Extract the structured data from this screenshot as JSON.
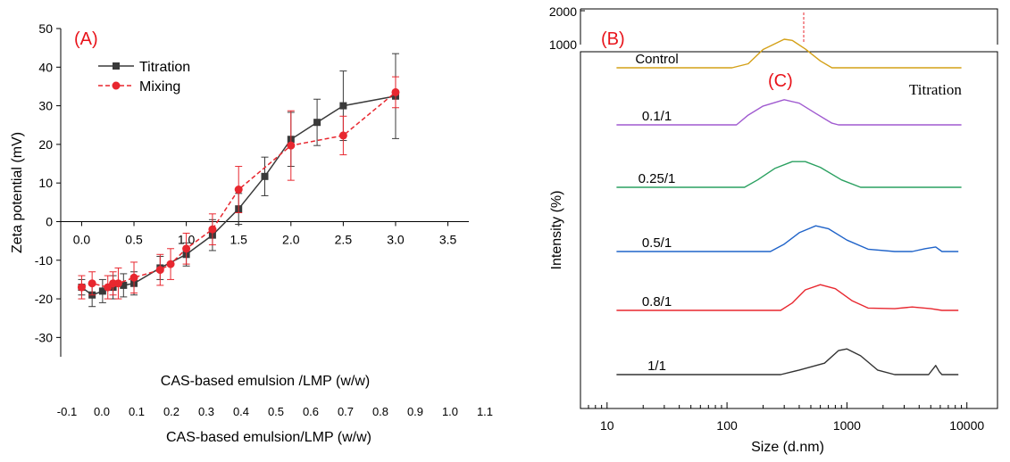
{
  "panels": {
    "A": {
      "label": "(A)",
      "ylabel": "Zeta potential (mV)",
      "xlabel": "CAS-based emulsion /LMP (w/w)",
      "xlabel2": "CAS-based emulsion/LMP (w/w)",
      "label_color": "#e8141b"
    },
    "B": {
      "label": "(B)",
      "top_ticks": [
        "2000",
        "1000"
      ],
      "label_color": "#e8141b"
    },
    "C": {
      "label": "(C)",
      "title": "Titration",
      "ylabel": "Intensity (%)",
      "xlabel": "Size (d.nm)",
      "label_color": "#e8141b"
    }
  },
  "chart_data": [
    {
      "id": "A",
      "type": "line",
      "xlim": [
        -0.2,
        3.7
      ],
      "ylim": [
        -35,
        50
      ],
      "yticks": [
        -30,
        -20,
        -10,
        0,
        10,
        20,
        30,
        40,
        50
      ],
      "xticks": [
        "0.0",
        "0.5",
        "1.0",
        "1.5",
        "2.0",
        "2.5",
        "3.0",
        "3.5"
      ],
      "xticks_values": [
        0,
        0.5,
        1.0,
        1.5,
        2.0,
        2.5,
        3.0,
        3.5
      ],
      "secondary_xticks": [
        "-0.1",
        "0.0",
        "0.1",
        "0.2",
        "0.3",
        "0.4",
        "0.5",
        "0.6",
        "0.7",
        "0.8",
        "0.9",
        "1.0",
        "1.1"
      ],
      "secondary_xlim": [
        -0.1,
        1.1
      ],
      "legend": "top-left",
      "series": [
        {
          "name": "Titration",
          "color": "#3a3a3a",
          "marker": "square",
          "dash": "solid",
          "x": [
            0.0,
            0.1,
            0.2,
            0.3,
            0.4,
            0.5,
            0.75,
            1.0,
            1.25,
            1.5,
            1.75,
            2.0,
            2.25,
            2.5,
            3.0
          ],
          "y": [
            -17.0,
            -19.0,
            -18.0,
            -17.0,
            -16.5,
            -16.0,
            -12.0,
            -8.5,
            -3.5,
            3.3,
            11.7,
            21.3,
            25.7,
            30.0,
            32.5
          ],
          "err": [
            2.0,
            3.0,
            3.0,
            3.0,
            3.0,
            3.0,
            3.0,
            3.0,
            4.0,
            4.0,
            5.0,
            7.0,
            6.0,
            9.0,
            11.0
          ]
        },
        {
          "name": "Mixing",
          "color": "#e8272f",
          "marker": "circle",
          "dash": "dashed",
          "x": [
            0.0,
            0.1,
            0.25,
            0.3,
            0.35,
            0.5,
            0.75,
            0.85,
            1.0,
            1.25,
            1.5,
            2.0,
            2.5,
            3.0
          ],
          "y": [
            -17.0,
            -16.0,
            -17.0,
            -16.0,
            -16.0,
            -14.5,
            -12.5,
            -11.0,
            -7.0,
            -2.0,
            8.3,
            19.7,
            22.3,
            33.5
          ],
          "err": [
            3.0,
            3.0,
            3.0,
            3.0,
            4.0,
            4.0,
            4.0,
            4.0,
            4.0,
            4.0,
            6.0,
            9.0,
            5.0,
            4.0
          ]
        }
      ]
    },
    {
      "id": "C",
      "type": "line",
      "xscale": "log",
      "xlim": [
        6,
        18000
      ],
      "xticks": [
        "10",
        "100",
        "1000",
        "10000"
      ],
      "xticks_values": [
        10,
        100,
        1000,
        10000
      ],
      "series": [
        {
          "name": "Control",
          "color": "#d4a017",
          "baseline": 0.955,
          "points": [
            [
              12,
              0
            ],
            [
              110,
              0
            ],
            [
              150,
              0.07
            ],
            [
              200,
              0.32
            ],
            [
              300,
              0.5
            ],
            [
              350,
              0.48
            ],
            [
              450,
              0.33
            ],
            [
              600,
              0.12
            ],
            [
              750,
              0
            ],
            [
              9000,
              0
            ]
          ]
        },
        {
          "name": "0.1/1",
          "color": "#a05ad0",
          "baseline": 0.795,
          "points": [
            [
              12,
              0
            ],
            [
              120,
              0
            ],
            [
              150,
              0.17
            ],
            [
              200,
              0.33
            ],
            [
              300,
              0.44
            ],
            [
              400,
              0.38
            ],
            [
              550,
              0.2
            ],
            [
              750,
              0.03
            ],
            [
              850,
              0
            ],
            [
              9000,
              0
            ]
          ]
        },
        {
          "name": "0.25/1",
          "color": "#2aa060",
          "baseline": 0.62,
          "points": [
            [
              12,
              0
            ],
            [
              140,
              0
            ],
            [
              180,
              0.13
            ],
            [
              250,
              0.33
            ],
            [
              350,
              0.45
            ],
            [
              450,
              0.45
            ],
            [
              600,
              0.35
            ],
            [
              900,
              0.13
            ],
            [
              1300,
              0
            ],
            [
              9000,
              0
            ]
          ]
        },
        {
          "name": "0.5/1",
          "color": "#1f63c9",
          "baseline": 0.44,
          "points": [
            [
              12,
              0
            ],
            [
              230,
              0
            ],
            [
              300,
              0.13
            ],
            [
              400,
              0.33
            ],
            [
              550,
              0.45
            ],
            [
              700,
              0.4
            ],
            [
              1000,
              0.2
            ],
            [
              1500,
              0.04
            ],
            [
              2500,
              0
            ],
            [
              3500,
              0
            ],
            [
              4500,
              0.05
            ],
            [
              5500,
              0.08
            ],
            [
              6200,
              0
            ],
            [
              8500,
              0
            ]
          ]
        },
        {
          "name": "0.8/1",
          "color": "#e8272f",
          "baseline": 0.275,
          "points": [
            [
              12,
              0
            ],
            [
              280,
              0
            ],
            [
              350,
              0.13
            ],
            [
              450,
              0.36
            ],
            [
              600,
              0.45
            ],
            [
              800,
              0.38
            ],
            [
              1100,
              0.17
            ],
            [
              1500,
              0.04
            ],
            [
              2500,
              0.03
            ],
            [
              3500,
              0.06
            ],
            [
              5000,
              0.03
            ],
            [
              6200,
              0
            ],
            [
              8500,
              0
            ]
          ]
        },
        {
          "name": "1/1",
          "color": "#333333",
          "baseline": 0.095,
          "points": [
            [
              12,
              0
            ],
            [
              280,
              0
            ],
            [
              400,
              0.08
            ],
            [
              650,
              0.2
            ],
            [
              850,
              0.42
            ],
            [
              1000,
              0.45
            ],
            [
              1300,
              0.33
            ],
            [
              1800,
              0.08
            ],
            [
              2500,
              0
            ],
            [
              4800,
              0
            ],
            [
              5500,
              0.16
            ],
            [
              5900,
              0.05
            ],
            [
              6200,
              0
            ],
            [
              8500,
              0
            ]
          ]
        }
      ]
    }
  ]
}
